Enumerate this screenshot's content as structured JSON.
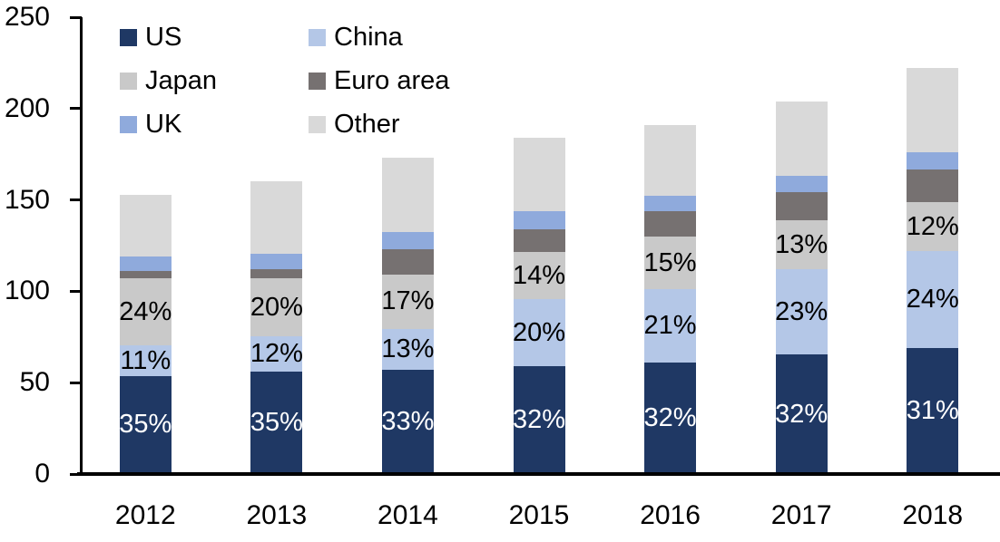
{
  "chart_data": {
    "type": "bar",
    "variant": "stacked-vertical",
    "title": "",
    "xlabel": "",
    "ylabel": "",
    "categories": [
      "2012",
      "2013",
      "2014",
      "2015",
      "2016",
      "2017",
      "2018"
    ],
    "series": [
      {
        "name": "US",
        "color": "#1f3864",
        "label_text_color": "#ffffff",
        "values": [
          53.6,
          56.0,
          57.1,
          58.9,
          61.1,
          65.3,
          68.8
        ],
        "labels": [
          "35%",
          "35%",
          "33%",
          "32%",
          "32%",
          "32%",
          "31%"
        ]
      },
      {
        "name": "China",
        "color": "#b4c7e7",
        "label_text_color": "#000000",
        "values": [
          16.8,
          19.2,
          22.5,
          36.8,
          40.1,
          46.9,
          53.3
        ],
        "labels": [
          "11%",
          "12%",
          "13%",
          "20%",
          "21%",
          "23%",
          "24%"
        ]
      },
      {
        "name": "Japan",
        "color": "#c9c9c9",
        "label_text_color": "#000000",
        "values": [
          36.7,
          32.0,
          29.4,
          25.8,
          28.7,
          26.5,
          26.6
        ],
        "labels": [
          "24%",
          "20%",
          "17%",
          "14%",
          "15%",
          "13%",
          "12%"
        ]
      },
      {
        "name": "Euro area",
        "color": "#767171",
        "label_text_color": "#000000",
        "values": [
          4.0,
          5.0,
          13.9,
          12.4,
          13.9,
          15.4,
          17.8
        ],
        "labels": [
          null,
          null,
          null,
          null,
          null,
          null,
          null
        ]
      },
      {
        "name": "UK",
        "color": "#8faadc",
        "label_text_color": "#000000",
        "values": [
          8.0,
          8.4,
          9.4,
          9.8,
          8.4,
          8.9,
          9.4
        ],
        "labels": [
          null,
          null,
          null,
          null,
          null,
          null,
          null
        ]
      },
      {
        "name": "Other",
        "color": "#d9d9d9",
        "label_text_color": "#000000",
        "values": [
          33.9,
          39.4,
          40.7,
          40.3,
          38.8,
          41.0,
          46.1
        ],
        "labels": [
          null,
          null,
          null,
          null,
          null,
          null,
          null
        ]
      }
    ],
    "totals": [
      153,
      160,
      173,
      184,
      191,
      204,
      222
    ],
    "y_axis": {
      "min": 0,
      "max": 250,
      "ticks": [
        0,
        50,
        100,
        150,
        200,
        250
      ]
    },
    "grid": false,
    "legend": {
      "position": "top-left",
      "columns": 2,
      "items": [
        "US",
        "China",
        "Japan",
        "Euro area",
        "UK",
        "Other"
      ]
    },
    "axis_color": "#000000",
    "background_color": "#ffffff"
  }
}
